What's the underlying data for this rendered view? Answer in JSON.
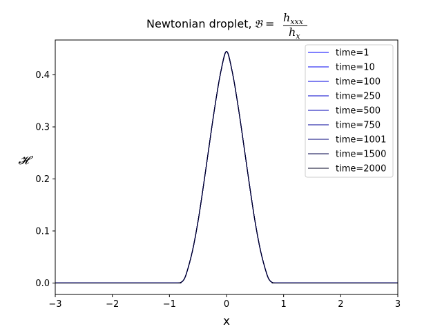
{
  "chart_data": {
    "type": "line",
    "title": "Newtonian droplet, 𝔅 = h_xxx / h_x",
    "title_parts": {
      "prefix": "Newtonian droplet,",
      "symbol": "𝔅",
      "equals": "=",
      "numerator": "h",
      "numerator_sub": "xxx",
      "denominator": "h",
      "denominator_sub": "x"
    },
    "xlabel": "x",
    "ylabel": "𝓗",
    "xlim": [
      -3,
      3
    ],
    "ylim": [
      -0.022,
      0.467
    ],
    "xticks": [
      -3,
      -2,
      -1,
      0,
      1,
      2,
      3
    ],
    "xtick_labels": [
      "−3",
      "−2",
      "−1",
      "0",
      "1",
      "2",
      "3"
    ],
    "yticks": [
      0.0,
      0.1,
      0.2,
      0.3,
      0.4
    ],
    "ytick_labels": [
      "0.0",
      "0.1",
      "0.2",
      "0.3",
      "0.4"
    ],
    "grid": false,
    "legend_position": "top-right",
    "x": [
      -3,
      -1,
      -0.85,
      -0.8,
      -0.75,
      -0.7,
      -0.6,
      -0.5,
      -0.4,
      -0.3,
      -0.2,
      -0.1,
      0,
      0.1,
      0.2,
      0.3,
      0.4,
      0.5,
      0.6,
      0.7,
      0.75,
      0.8,
      0.85,
      1,
      3
    ],
    "series": [
      {
        "name": "time=1",
        "color": "#0000ff",
        "values": [
          0,
          0,
          0,
          0.001,
          0.006,
          0.019,
          0.06,
          0.118,
          0.19,
          0.267,
          0.342,
          0.406,
          0.445,
          0.406,
          0.342,
          0.267,
          0.19,
          0.118,
          0.06,
          0.019,
          0.006,
          0.001,
          0,
          0,
          0
        ]
      },
      {
        "name": "time=10",
        "color": "#0000f0",
        "values": [
          0,
          0,
          0,
          0.001,
          0.006,
          0.019,
          0.06,
          0.118,
          0.19,
          0.267,
          0.342,
          0.406,
          0.445,
          0.406,
          0.342,
          0.267,
          0.19,
          0.118,
          0.06,
          0.019,
          0.006,
          0.001,
          0,
          0,
          0
        ]
      },
      {
        "name": "time=100",
        "color": "#0000e0",
        "values": [
          0,
          0,
          0,
          0.001,
          0.006,
          0.019,
          0.06,
          0.118,
          0.19,
          0.267,
          0.342,
          0.406,
          0.445,
          0.406,
          0.342,
          0.267,
          0.19,
          0.118,
          0.06,
          0.019,
          0.006,
          0.001,
          0,
          0,
          0
        ]
      },
      {
        "name": "time=250",
        "color": "#0000cc",
        "values": [
          0,
          0,
          0,
          0.001,
          0.006,
          0.019,
          0.06,
          0.118,
          0.19,
          0.267,
          0.342,
          0.406,
          0.445,
          0.406,
          0.342,
          0.267,
          0.19,
          0.118,
          0.06,
          0.019,
          0.006,
          0.001,
          0,
          0,
          0
        ]
      },
      {
        "name": "time=500",
        "color": "#0000b4",
        "values": [
          0,
          0,
          0,
          0.001,
          0.006,
          0.019,
          0.06,
          0.118,
          0.19,
          0.267,
          0.342,
          0.406,
          0.445,
          0.406,
          0.342,
          0.267,
          0.19,
          0.118,
          0.06,
          0.019,
          0.006,
          0.001,
          0,
          0,
          0
        ]
      },
      {
        "name": "time=750",
        "color": "#00009a",
        "values": [
          0,
          0,
          0,
          0.001,
          0.006,
          0.019,
          0.06,
          0.118,
          0.19,
          0.267,
          0.342,
          0.406,
          0.445,
          0.406,
          0.342,
          0.267,
          0.19,
          0.118,
          0.06,
          0.019,
          0.006,
          0.001,
          0,
          0,
          0
        ]
      },
      {
        "name": "time=1001",
        "color": "#00007a",
        "values": [
          0,
          0,
          0,
          0.001,
          0.006,
          0.019,
          0.06,
          0.118,
          0.19,
          0.267,
          0.342,
          0.406,
          0.445,
          0.406,
          0.342,
          0.267,
          0.19,
          0.118,
          0.06,
          0.019,
          0.006,
          0.001,
          0,
          0,
          0
        ]
      },
      {
        "name": "time=1500",
        "color": "#00004a",
        "values": [
          0,
          0,
          0,
          0.001,
          0.006,
          0.019,
          0.06,
          0.118,
          0.19,
          0.267,
          0.342,
          0.406,
          0.445,
          0.406,
          0.342,
          0.267,
          0.19,
          0.118,
          0.06,
          0.019,
          0.006,
          0.001,
          0,
          0,
          0
        ]
      },
      {
        "name": "time=2000",
        "color": "#000022",
        "values": [
          0,
          0,
          0,
          0.001,
          0.006,
          0.019,
          0.06,
          0.118,
          0.19,
          0.267,
          0.342,
          0.406,
          0.445,
          0.406,
          0.342,
          0.267,
          0.19,
          0.118,
          0.06,
          0.019,
          0.006,
          0.001,
          0,
          0,
          0
        ]
      }
    ]
  }
}
